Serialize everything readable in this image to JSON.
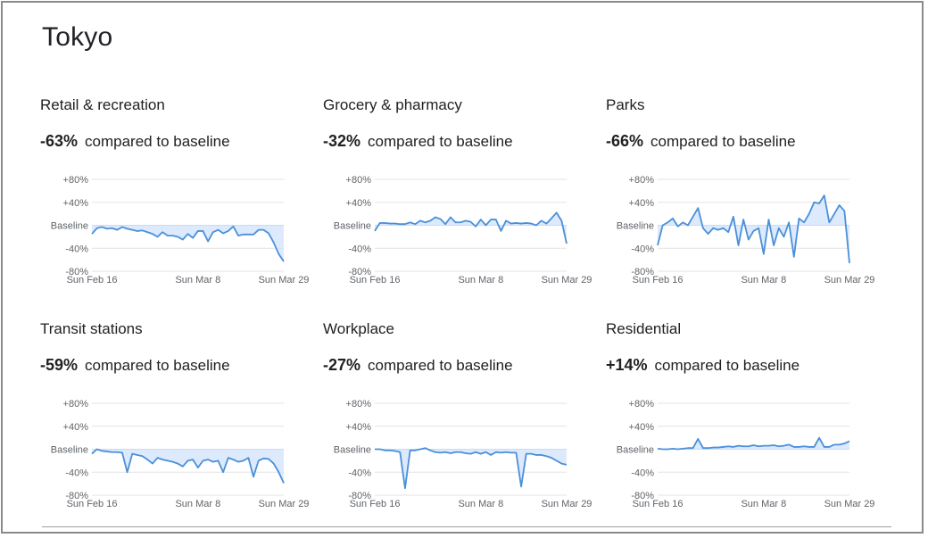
{
  "title": "Tokyo",
  "summary_suffix": "compared to baseline",
  "chart_data": [
    {
      "type": "line",
      "title": "Retail & recreation",
      "headline": "-63%",
      "x_tick_labels": [
        "Sun Feb 16",
        "Sun Mar 8",
        "Sun Mar 29"
      ],
      "y_tick_labels": [
        "+80%",
        "+40%",
        "Baseline",
        "-40%",
        "-80%"
      ],
      "ylim": [
        -80,
        80
      ],
      "grid": true,
      "line_color": "#4a90d9",
      "fill_color": "#d2e3fc",
      "values": [
        -15,
        -5,
        -3,
        -6,
        -5,
        -8,
        -3,
        -6,
        -8,
        -10,
        -9,
        -12,
        -15,
        -20,
        -12,
        -18,
        -18,
        -20,
        -25,
        -15,
        -22,
        -10,
        -10,
        -28,
        -12,
        -8,
        -14,
        -10,
        -2,
        -18,
        -16,
        -16,
        -16,
        -8,
        -8,
        -14,
        -30,
        -50,
        -63
      ]
    },
    {
      "type": "line",
      "title": "Grocery & pharmacy",
      "headline": "-32%",
      "x_tick_labels": [
        "Sun Feb 16",
        "Sun Mar 8",
        "Sun Mar 29"
      ],
      "y_tick_labels": [
        "+80%",
        "+40%",
        "Baseline",
        "-40%",
        "-80%"
      ],
      "ylim": [
        -80,
        80
      ],
      "grid": true,
      "line_color": "#4a90d9",
      "fill_color": "#d2e3fc",
      "values": [
        -10,
        4,
        4,
        3,
        3,
        2,
        2,
        5,
        2,
        8,
        5,
        8,
        14,
        11,
        2,
        14,
        5,
        5,
        8,
        6,
        -2,
        10,
        0,
        10,
        10,
        -10,
        8,
        3,
        4,
        3,
        4,
        3,
        0,
        8,
        3,
        12,
        22,
        8,
        -32
      ]
    },
    {
      "type": "line",
      "title": "Parks",
      "headline": "-66%",
      "x_tick_labels": [
        "Sun Feb 16",
        "Sun Mar 8",
        "Sun Mar 29"
      ],
      "y_tick_labels": [
        "+80%",
        "+40%",
        "Baseline",
        "-40%",
        "-80%"
      ],
      "ylim": [
        -80,
        80
      ],
      "grid": true,
      "line_color": "#4a90d9",
      "fill_color": "#d2e3fc",
      "values": [
        -35,
        0,
        5,
        12,
        -2,
        5,
        0,
        15,
        30,
        -5,
        -15,
        -5,
        -8,
        -5,
        -12,
        15,
        -35,
        10,
        -25,
        -10,
        -5,
        -50,
        10,
        -35,
        -5,
        -20,
        5,
        -55,
        12,
        5,
        20,
        40,
        38,
        52,
        5,
        20,
        35,
        25,
        -66
      ]
    },
    {
      "type": "line",
      "title": "Transit stations",
      "headline": "-59%",
      "x_tick_labels": [
        "Sun Feb 16",
        "Sun Mar 8",
        "Sun Mar 29"
      ],
      "y_tick_labels": [
        "+80%",
        "+40%",
        "Baseline",
        "-40%",
        "-80%"
      ],
      "ylim": [
        -80,
        80
      ],
      "grid": true,
      "line_color": "#4a90d9",
      "fill_color": "#d2e3fc",
      "values": [
        -8,
        0,
        -3,
        -4,
        -5,
        -5,
        -6,
        -40,
        -8,
        -10,
        -12,
        -18,
        -25,
        -15,
        -18,
        -20,
        -22,
        -25,
        -30,
        -20,
        -18,
        -32,
        -20,
        -18,
        -22,
        -20,
        -40,
        -15,
        -18,
        -22,
        -20,
        -15,
        -48,
        -20,
        -16,
        -17,
        -25,
        -40,
        -59
      ]
    },
    {
      "type": "line",
      "title": "Workplace",
      "headline": "-27%",
      "x_tick_labels": [
        "Sun Feb 16",
        "Sun Mar 8",
        "Sun Mar 29"
      ],
      "y_tick_labels": [
        "+80%",
        "+40%",
        "Baseline",
        "-40%",
        "-80%"
      ],
      "ylim": [
        -80,
        80
      ],
      "grid": true,
      "line_color": "#4a90d9",
      "fill_color": "#d2e3fc",
      "values": [
        0,
        0,
        -2,
        -2,
        -3,
        -5,
        -68,
        -2,
        -2,
        0,
        2,
        -2,
        -5,
        -6,
        -5,
        -7,
        -5,
        -5,
        -7,
        -8,
        -5,
        -8,
        -5,
        -10,
        -5,
        -6,
        -5,
        -6,
        -6,
        -65,
        -8,
        -8,
        -10,
        -10,
        -12,
        -15,
        -20,
        -25,
        -27
      ]
    },
    {
      "type": "line",
      "title": "Residential",
      "headline": "+14%",
      "x_tick_labels": [
        "Sun Feb 16",
        "Sun Mar 8",
        "Sun Mar 29"
      ],
      "y_tick_labels": [
        "+80%",
        "+40%",
        "Baseline",
        "-40%",
        "-80%"
      ],
      "ylim": [
        -80,
        80
      ],
      "grid": true,
      "line_color": "#4a90d9",
      "fill_color": "#d2e3fc",
      "values": [
        1,
        0,
        0,
        1,
        0,
        1,
        2,
        2,
        18,
        2,
        2,
        3,
        3,
        4,
        5,
        4,
        6,
        5,
        5,
        7,
        5,
        6,
        6,
        7,
        5,
        6,
        8,
        4,
        4,
        5,
        4,
        4,
        20,
        4,
        4,
        8,
        8,
        10,
        14
      ]
    }
  ]
}
